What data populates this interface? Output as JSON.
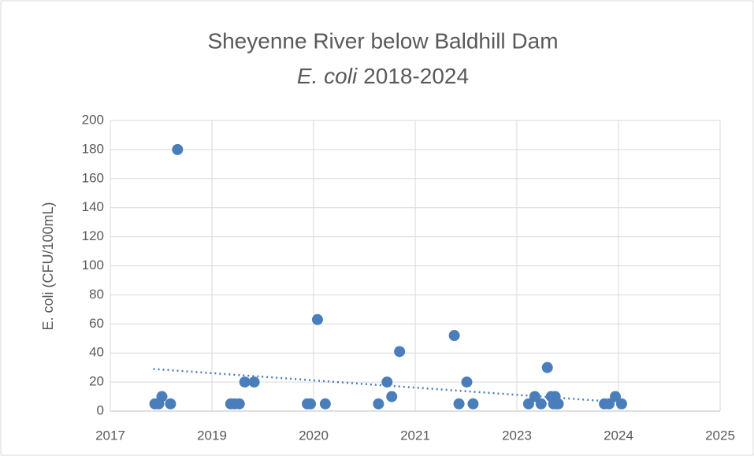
{
  "chart_data": {
    "type": "scatter",
    "title": "Sheyenne River below Baldhill Dam",
    "subtitle_italic": "E. coli",
    "subtitle": "2018-2024",
    "ylabel": "E. coli (CFU/100mL)",
    "color": "#4a7ebb",
    "grid": true,
    "xlim": [
      2017.9,
      2025.7
    ],
    "xticks": [
      {
        "value": 2017.9,
        "label": "2017"
      },
      {
        "value": 2019.2,
        "label": "2019"
      },
      {
        "value": 2020.5,
        "label": "2020"
      },
      {
        "value": 2021.8,
        "label": "2021"
      },
      {
        "value": 2023.1,
        "label": "2023"
      },
      {
        "value": 2024.4,
        "label": "2024"
      },
      {
        "value": 2025.7,
        "label": "2025"
      }
    ],
    "ylim": [
      0,
      200
    ],
    "yticks": [
      0,
      20,
      40,
      60,
      80,
      100,
      120,
      140,
      160,
      180,
      200
    ],
    "x": [
      2018.47,
      2018.52,
      2018.56,
      2018.67,
      2018.76,
      2019.44,
      2019.49,
      2019.55,
      2019.62,
      2019.74,
      2020.42,
      2020.46,
      2020.55,
      2020.65,
      2021.33,
      2021.44,
      2021.5,
      2021.6,
      2022.3,
      2022.36,
      2022.46,
      2022.54,
      2023.25,
      2023.33,
      2023.41,
      2023.49,
      2023.54,
      2023.57,
      2023.59,
      2023.61,
      2023.63,
      2024.22,
      2024.28,
      2024.36,
      2024.44
    ],
    "values": [
      5,
      5,
      10,
      5,
      180,
      5,
      5,
      5,
      20,
      20,
      5,
      5,
      63,
      5,
      5,
      20,
      10,
      41,
      52,
      5,
      20,
      5,
      5,
      10,
      5,
      30,
      10,
      5,
      10,
      5,
      5,
      5,
      5,
      10,
      5
    ],
    "trendline": {
      "x": [
        2018.45,
        2024.2
      ],
      "y": [
        29,
        7
      ]
    }
  }
}
